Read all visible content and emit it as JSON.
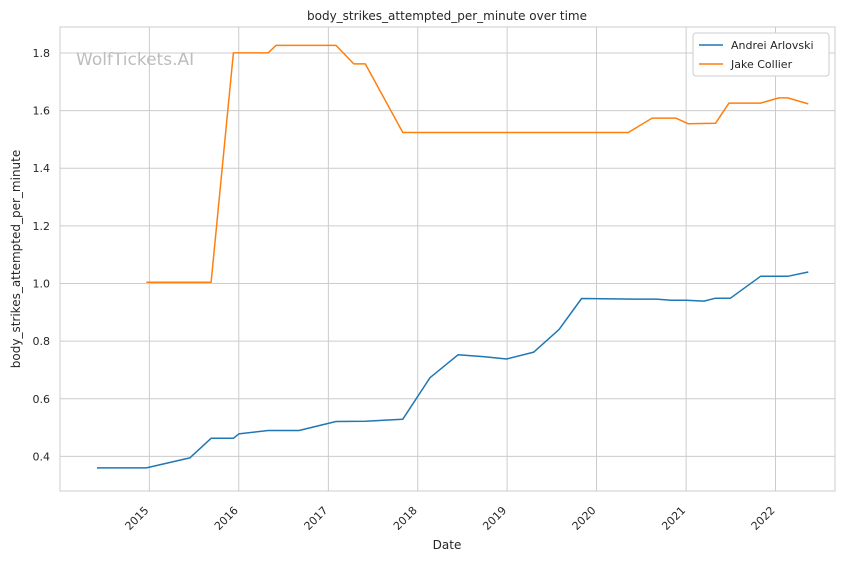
{
  "chart_data": {
    "type": "line",
    "title": "body_strikes_attempted_per_minute over time",
    "xlabel": "Date",
    "ylabel": "body_strikes_attempted_per_minute",
    "watermark": "WolfTickets.AI",
    "xlim": [
      "2014-01-01",
      "2022-09-01"
    ],
    "ylim": [
      0.28,
      1.89
    ],
    "x_ticks": [
      "2015-01-01",
      "2016-01-01",
      "2017-01-01",
      "2018-01-01",
      "2019-01-01",
      "2020-01-01",
      "2021-01-01",
      "2022-01-01"
    ],
    "x_tick_labels": [
      "2015",
      "2016",
      "2017",
      "2018",
      "2019",
      "2020",
      "2021",
      "2022"
    ],
    "y_ticks": [
      0.4,
      0.6,
      0.8,
      1.0,
      1.2,
      1.4,
      1.6,
      1.8
    ],
    "y_tick_labels": [
      "0.4",
      "0.6",
      "0.8",
      "1.0",
      "1.2",
      "1.4",
      "1.6",
      "1.8"
    ],
    "grid": true,
    "legend_position": "top-right",
    "series": [
      {
        "name": "Andrei Arlovski",
        "color": "#1f77b4",
        "points": [
          [
            "2014-06-01",
            0.36
          ],
          [
            "2014-12-20",
            0.36
          ],
          [
            "2015-06-15",
            0.395
          ],
          [
            "2015-09-10",
            0.463
          ],
          [
            "2015-12-10",
            0.463
          ],
          [
            "2016-01-01",
            0.478
          ],
          [
            "2016-04-30",
            0.49
          ],
          [
            "2016-09-03",
            0.49
          ],
          [
            "2017-02-01",
            0.521
          ],
          [
            "2017-06-01",
            0.522
          ],
          [
            "2017-11-01",
            0.529
          ],
          [
            "2018-02-20",
            0.673
          ],
          [
            "2018-06-15",
            0.753
          ],
          [
            "2018-10-01",
            0.746
          ],
          [
            "2018-12-30",
            0.738
          ],
          [
            "2019-04-20",
            0.762
          ],
          [
            "2019-08-01",
            0.84
          ],
          [
            "2019-11-01",
            0.948
          ],
          [
            "2020-06-01",
            0.946
          ],
          [
            "2020-09-01",
            0.946
          ],
          [
            "2020-11-01",
            0.942
          ],
          [
            "2021-01-01",
            0.942
          ],
          [
            "2021-03-15",
            0.939
          ],
          [
            "2021-05-01",
            0.949
          ],
          [
            "2021-07-01",
            0.949
          ],
          [
            "2021-11-01",
            1.025
          ],
          [
            "2022-02-20",
            1.025
          ],
          [
            "2022-05-15",
            1.04
          ]
        ]
      },
      {
        "name": "Jake Collier",
        "color": "#ff7f0e",
        "points": [
          [
            "2014-12-20",
            1.004
          ],
          [
            "2015-09-10",
            1.004
          ],
          [
            "2015-12-10",
            1.8
          ],
          [
            "2016-04-30",
            1.8
          ],
          [
            "2016-06-01",
            1.826
          ],
          [
            "2017-02-01",
            1.826
          ],
          [
            "2017-04-15",
            1.762
          ],
          [
            "2017-06-01",
            1.762
          ],
          [
            "2017-11-01",
            1.524
          ],
          [
            "2020-05-10",
            1.524
          ],
          [
            "2020-08-15",
            1.574
          ],
          [
            "2020-11-20",
            1.574
          ],
          [
            "2021-01-10",
            1.554
          ],
          [
            "2021-05-01",
            1.556
          ],
          [
            "2021-06-25",
            1.626
          ],
          [
            "2021-11-01",
            1.626
          ],
          [
            "2022-01-15",
            1.644
          ],
          [
            "2022-02-20",
            1.644
          ],
          [
            "2022-05-15",
            1.623
          ]
        ]
      }
    ]
  }
}
